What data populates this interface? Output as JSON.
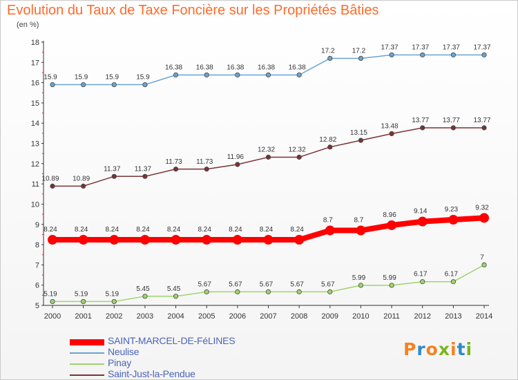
{
  "header": {
    "title": "Evolution du Taux de Taxe Foncière sur les Propriétés Bâties",
    "unit": "(en %)"
  },
  "brand": {
    "letters": [
      "P",
      "r",
      "o",
      "x",
      "i",
      "t",
      "i"
    ],
    "colors": [
      "#f58220",
      "#2c8ccb",
      "#f58220",
      "#7ab51d",
      "#f58220",
      "#2c8ccb",
      "#7ab51d"
    ]
  },
  "chart_data": {
    "type": "line",
    "title": "Evolution du Taux de Taxe Foncière sur les Propriétés Bâties",
    "ylabel": "(en %)",
    "xlabel": "",
    "ylim": [
      5,
      18
    ],
    "yticks": [
      5,
      6,
      7,
      8,
      9,
      10,
      11,
      12,
      13,
      14,
      15,
      16,
      17,
      18
    ],
    "grid": false,
    "legend_position": "bottom-left",
    "x": [
      "2000",
      "2001",
      "2002",
      "2003",
      "2004",
      "2005",
      "2006",
      "2007",
      "2008",
      "2009",
      "2010",
      "2011",
      "2012",
      "2013",
      "2014"
    ],
    "series": [
      {
        "name": "SAINT-MARCEL-DE-FéLINES",
        "color": "#ff0000",
        "emphasis": true,
        "values": [
          8.24,
          8.24,
          8.24,
          8.24,
          8.24,
          8.24,
          8.24,
          8.24,
          8.24,
          8.7,
          8.7,
          8.96,
          9.14,
          9.23,
          9.32
        ],
        "labels": [
          "8.24",
          "8.24",
          "8.24",
          "8.24",
          "8.24",
          "8.24",
          "8.24",
          "8.24",
          "8.24",
          "8.7",
          "8.7",
          "8.96",
          "9.14",
          "9.23",
          "9.32"
        ]
      },
      {
        "name": "Neulise",
        "color": "#6aa3d2",
        "emphasis": false,
        "values": [
          15.9,
          15.9,
          15.9,
          15.9,
          16.38,
          16.38,
          16.38,
          16.38,
          16.38,
          17.2,
          17.2,
          17.37,
          17.37,
          17.37,
          17.37
        ],
        "labels": [
          "15.9",
          "15.9",
          "15.9",
          "15.9",
          "16.38",
          "16.38",
          "16.38",
          "16.38",
          "16.38",
          "17.2",
          "17.2",
          "17.37",
          "17.37",
          "17.37",
          "17.37"
        ]
      },
      {
        "name": "Pinay",
        "color": "#9ed46b",
        "emphasis": false,
        "values": [
          5.19,
          5.19,
          5.19,
          5.45,
          5.45,
          5.67,
          5.67,
          5.67,
          5.67,
          5.67,
          5.99,
          5.99,
          6.17,
          6.17,
          7
        ],
        "labels": [
          "5.19",
          "5.19",
          "5.19",
          "5.45",
          "5.45",
          "5.67",
          "5.67",
          "5.67",
          "5.67",
          "5.67",
          "5.99",
          "5.99",
          "6.17",
          "6.17",
          "7"
        ]
      },
      {
        "name": "Saint-Just-la-Pendue",
        "color": "#7a3234",
        "emphasis": false,
        "values": [
          10.89,
          10.89,
          11.37,
          11.37,
          11.73,
          11.73,
          11.96,
          12.32,
          12.32,
          12.82,
          13.15,
          13.48,
          13.77,
          13.77,
          13.77
        ],
        "labels": [
          "10.89",
          "10.89",
          "11.37",
          "11.37",
          "11.73",
          "11.73",
          "11.96",
          "12.32",
          "12.32",
          "12.82",
          "13.15",
          "13.48",
          "13.77",
          "13.77",
          "13.77"
        ]
      }
    ]
  }
}
